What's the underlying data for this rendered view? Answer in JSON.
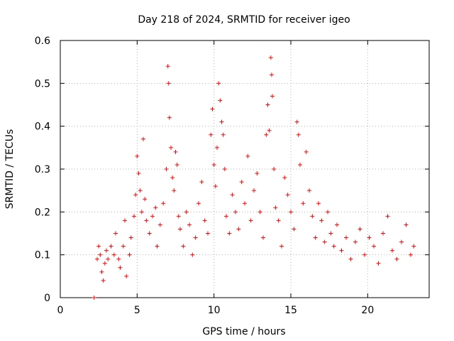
{
  "chart_data": {
    "type": "scatter",
    "title": "Day 218 of 2024, SRMTID for receiver igeo",
    "xlabel": "GPS time / hours",
    "ylabel": "SRMTID / TECUs",
    "xlim": [
      0,
      24
    ],
    "ylim": [
      0,
      0.6
    ],
    "xticks": [
      0,
      5,
      10,
      15,
      20
    ],
    "yticks": [
      0,
      0.1,
      0.2,
      0.3,
      0.4,
      0.5,
      0.6
    ],
    "grid": true,
    "marker": "+",
    "color": "#ff0000",
    "series": [
      {
        "name": "SRMTID",
        "points": [
          [
            2.2,
            0.0
          ],
          [
            2.4,
            0.09
          ],
          [
            2.5,
            0.12
          ],
          [
            2.6,
            0.1
          ],
          [
            2.7,
            0.06
          ],
          [
            2.8,
            0.04
          ],
          [
            2.9,
            0.08
          ],
          [
            3.0,
            0.11
          ],
          [
            3.1,
            0.09
          ],
          [
            3.3,
            0.12
          ],
          [
            3.5,
            0.1
          ],
          [
            3.6,
            0.15
          ],
          [
            3.8,
            0.09
          ],
          [
            3.9,
            0.07
          ],
          [
            4.1,
            0.12
          ],
          [
            4.2,
            0.18
          ],
          [
            4.3,
            0.05
          ],
          [
            4.5,
            0.1
          ],
          [
            4.6,
            0.14
          ],
          [
            4.8,
            0.19
          ],
          [
            4.9,
            0.24
          ],
          [
            5.0,
            0.33
          ],
          [
            5.1,
            0.29
          ],
          [
            5.2,
            0.25
          ],
          [
            5.3,
            0.2
          ],
          [
            5.4,
            0.37
          ],
          [
            5.5,
            0.23
          ],
          [
            5.6,
            0.18
          ],
          [
            5.8,
            0.15
          ],
          [
            6.0,
            0.19
          ],
          [
            6.2,
            0.21
          ],
          [
            6.3,
            0.12
          ],
          [
            6.5,
            0.17
          ],
          [
            6.7,
            0.22
          ],
          [
            6.9,
            0.3
          ],
          [
            7.0,
            0.54
          ],
          [
            7.05,
            0.5
          ],
          [
            7.1,
            0.42
          ],
          [
            7.2,
            0.35
          ],
          [
            7.3,
            0.28
          ],
          [
            7.4,
            0.25
          ],
          [
            7.5,
            0.34
          ],
          [
            7.6,
            0.31
          ],
          [
            7.7,
            0.19
          ],
          [
            7.8,
            0.16
          ],
          [
            8.0,
            0.12
          ],
          [
            8.2,
            0.2
          ],
          [
            8.4,
            0.17
          ],
          [
            8.6,
            0.1
          ],
          [
            8.8,
            0.14
          ],
          [
            9.0,
            0.22
          ],
          [
            9.2,
            0.27
          ],
          [
            9.4,
            0.18
          ],
          [
            9.6,
            0.15
          ],
          [
            9.8,
            0.38
          ],
          [
            9.9,
            0.44
          ],
          [
            10.0,
            0.31
          ],
          [
            10.1,
            0.26
          ],
          [
            10.2,
            0.35
          ],
          [
            10.3,
            0.5
          ],
          [
            10.4,
            0.46
          ],
          [
            10.5,
            0.41
          ],
          [
            10.6,
            0.38
          ],
          [
            10.7,
            0.3
          ],
          [
            10.8,
            0.19
          ],
          [
            11.0,
            0.15
          ],
          [
            11.2,
            0.24
          ],
          [
            11.4,
            0.2
          ],
          [
            11.6,
            0.16
          ],
          [
            11.8,
            0.27
          ],
          [
            12.0,
            0.22
          ],
          [
            12.2,
            0.33
          ],
          [
            12.4,
            0.18
          ],
          [
            12.6,
            0.25
          ],
          [
            12.8,
            0.29
          ],
          [
            13.0,
            0.2
          ],
          [
            13.2,
            0.14
          ],
          [
            13.4,
            0.38
          ],
          [
            13.5,
            0.45
          ],
          [
            13.6,
            0.39
          ],
          [
            13.7,
            0.56
          ],
          [
            13.75,
            0.52
          ],
          [
            13.8,
            0.47
          ],
          [
            13.9,
            0.3
          ],
          [
            14.0,
            0.21
          ],
          [
            14.2,
            0.18
          ],
          [
            14.4,
            0.12
          ],
          [
            14.6,
            0.28
          ],
          [
            14.8,
            0.24
          ],
          [
            15.0,
            0.2
          ],
          [
            15.2,
            0.16
          ],
          [
            15.4,
            0.41
          ],
          [
            15.5,
            0.38
          ],
          [
            15.6,
            0.31
          ],
          [
            15.8,
            0.22
          ],
          [
            16.0,
            0.34
          ],
          [
            16.2,
            0.25
          ],
          [
            16.4,
            0.19
          ],
          [
            16.6,
            0.14
          ],
          [
            16.8,
            0.22
          ],
          [
            17.0,
            0.18
          ],
          [
            17.2,
            0.13
          ],
          [
            17.4,
            0.2
          ],
          [
            17.6,
            0.15
          ],
          [
            17.8,
            0.12
          ],
          [
            18.0,
            0.17
          ],
          [
            18.3,
            0.11
          ],
          [
            18.6,
            0.14
          ],
          [
            18.9,
            0.09
          ],
          [
            19.2,
            0.13
          ],
          [
            19.5,
            0.16
          ],
          [
            19.8,
            0.1
          ],
          [
            20.1,
            0.14
          ],
          [
            20.4,
            0.12
          ],
          [
            20.7,
            0.08
          ],
          [
            21.0,
            0.15
          ],
          [
            21.3,
            0.19
          ],
          [
            21.6,
            0.11
          ],
          [
            21.9,
            0.09
          ],
          [
            22.2,
            0.13
          ],
          [
            22.5,
            0.17
          ],
          [
            22.8,
            0.1
          ],
          [
            23.0,
            0.12
          ]
        ]
      }
    ]
  }
}
